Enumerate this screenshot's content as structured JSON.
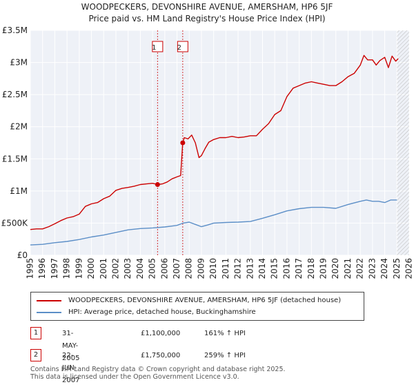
{
  "chart_data": {
    "type": "line",
    "title": "WOODPECKERS, DEVONSHIRE AVENUE, AMERSHAM, HP6 5JF",
    "subtitle": "Price paid vs. HM Land Registry's House Price Index (HPI)",
    "xlim": [
      1995,
      2026
    ],
    "ylim": [
      0,
      3500000
    ],
    "x_ticks": [
      "1995",
      "1996",
      "1997",
      "1998",
      "1999",
      "2000",
      "2001",
      "2002",
      "2003",
      "2004",
      "2005",
      "2006",
      "2007",
      "2008",
      "2009",
      "2010",
      "2011",
      "2012",
      "2013",
      "2014",
      "2015",
      "2016",
      "2017",
      "2018",
      "2019",
      "2020",
      "2021",
      "2022",
      "2023",
      "2024",
      "2025",
      "2026"
    ],
    "y_ticks": [
      {
        "value": 0,
        "label": "£0"
      },
      {
        "value": 500000,
        "label": "£500K"
      },
      {
        "value": 1000000,
        "label": "£1M"
      },
      {
        "value": 1500000,
        "label": "£1.5M"
      },
      {
        "value": 2000000,
        "label": "£2M"
      },
      {
        "value": 2500000,
        "label": "£2.5M"
      },
      {
        "value": 3000000,
        "label": "£3M"
      },
      {
        "value": 3500000,
        "label": "£3.5M"
      }
    ],
    "grid": true,
    "future_hatch_from": 2025.0,
    "series": [
      {
        "name": "WOODPECKERS, DEVONSHIRE AVENUE, AMERSHAM, HP6 5JF (detached house)",
        "color": "#cc0000",
        "x": [
          1995.0,
          1995.5,
          1996.0,
          1996.5,
          1997.0,
          1997.5,
          1998.0,
          1998.5,
          1999.0,
          1999.5,
          2000.0,
          2000.5,
          2001.0,
          2001.5,
          2002.0,
          2002.5,
          2003.0,
          2003.5,
          2004.0,
          2004.5,
          2005.0,
          2005.41,
          2005.8,
          2006.2,
          2006.6,
          2007.0,
          2007.3,
          2007.47,
          2007.6,
          2007.9,
          2008.2,
          2008.5,
          2008.8,
          2009.0,
          2009.3,
          2009.6,
          2010.0,
          2010.5,
          2011.0,
          2011.5,
          2012.0,
          2012.5,
          2013.0,
          2013.5,
          2014.0,
          2014.5,
          2015.0,
          2015.5,
          2016.0,
          2016.5,
          2017.0,
          2017.5,
          2018.0,
          2018.5,
          2019.0,
          2019.5,
          2020.0,
          2020.5,
          2021.0,
          2021.5,
          2022.0,
          2022.3,
          2022.6,
          2023.0,
          2023.3,
          2023.6,
          2024.0,
          2024.3,
          2024.6,
          2024.9,
          2025.1
        ],
        "values": [
          400000,
          410000,
          410000,
          445000,
          490000,
          540000,
          580000,
          600000,
          640000,
          760000,
          800000,
          820000,
          880000,
          920000,
          1010000,
          1040000,
          1055000,
          1075000,
          1100000,
          1110000,
          1120000,
          1100000,
          1110000,
          1140000,
          1190000,
          1220000,
          1240000,
          1750000,
          1830000,
          1810000,
          1870000,
          1750000,
          1520000,
          1550000,
          1660000,
          1760000,
          1800000,
          1830000,
          1830000,
          1850000,
          1830000,
          1840000,
          1860000,
          1860000,
          1960000,
          2050000,
          2190000,
          2250000,
          2470000,
          2600000,
          2640000,
          2680000,
          2700000,
          2680000,
          2660000,
          2640000,
          2640000,
          2700000,
          2780000,
          2830000,
          2960000,
          3110000,
          3040000,
          3040000,
          2960000,
          3030000,
          3080000,
          2920000,
          3100000,
          3020000,
          3060000
        ]
      },
      {
        "name": "HPI: Average price, detached house, Buckinghamshire",
        "color": "#5b8ec7",
        "x": [
          1995.0,
          1996.0,
          1997.0,
          1998.0,
          1999.0,
          2000.0,
          2001.0,
          2002.0,
          2003.0,
          2004.0,
          2005.0,
          2006.0,
          2007.0,
          2007.5,
          2008.0,
          2008.5,
          2009.0,
          2009.5,
          2010.0,
          2011.0,
          2012.0,
          2013.0,
          2014.0,
          2015.0,
          2016.0,
          2017.0,
          2018.0,
          2019.0,
          2020.0,
          2021.0,
          2022.0,
          2022.5,
          2023.0,
          2023.5,
          2024.0,
          2024.5,
          2025.0
        ],
        "values": [
          160000,
          170000,
          195000,
          215000,
          245000,
          285000,
          315000,
          355000,
          395000,
          415000,
          425000,
          440000,
          465000,
          500000,
          515000,
          480000,
          445000,
          470000,
          500000,
          510000,
          515000,
          525000,
          575000,
          630000,
          690000,
          725000,
          745000,
          745000,
          730000,
          790000,
          840000,
          860000,
          840000,
          840000,
          820000,
          860000,
          860000
        ]
      }
    ],
    "sales": [
      {
        "label": "1",
        "x": 2005.41,
        "value": 1100000,
        "date": "31-MAY-2005",
        "price": "£1,100,000",
        "pct": "161% ↑ HPI"
      },
      {
        "label": "2",
        "x": 2007.47,
        "value": 1750000,
        "date": "22-JUN-2007",
        "price": "£1,750,000",
        "pct": "259% ↑ HPI"
      }
    ]
  },
  "footer": {
    "line1": "Contains HM Land Registry data © Crown copyright and database right 2025.",
    "line2": "This data is licensed under the Open Government Licence v3.0."
  }
}
